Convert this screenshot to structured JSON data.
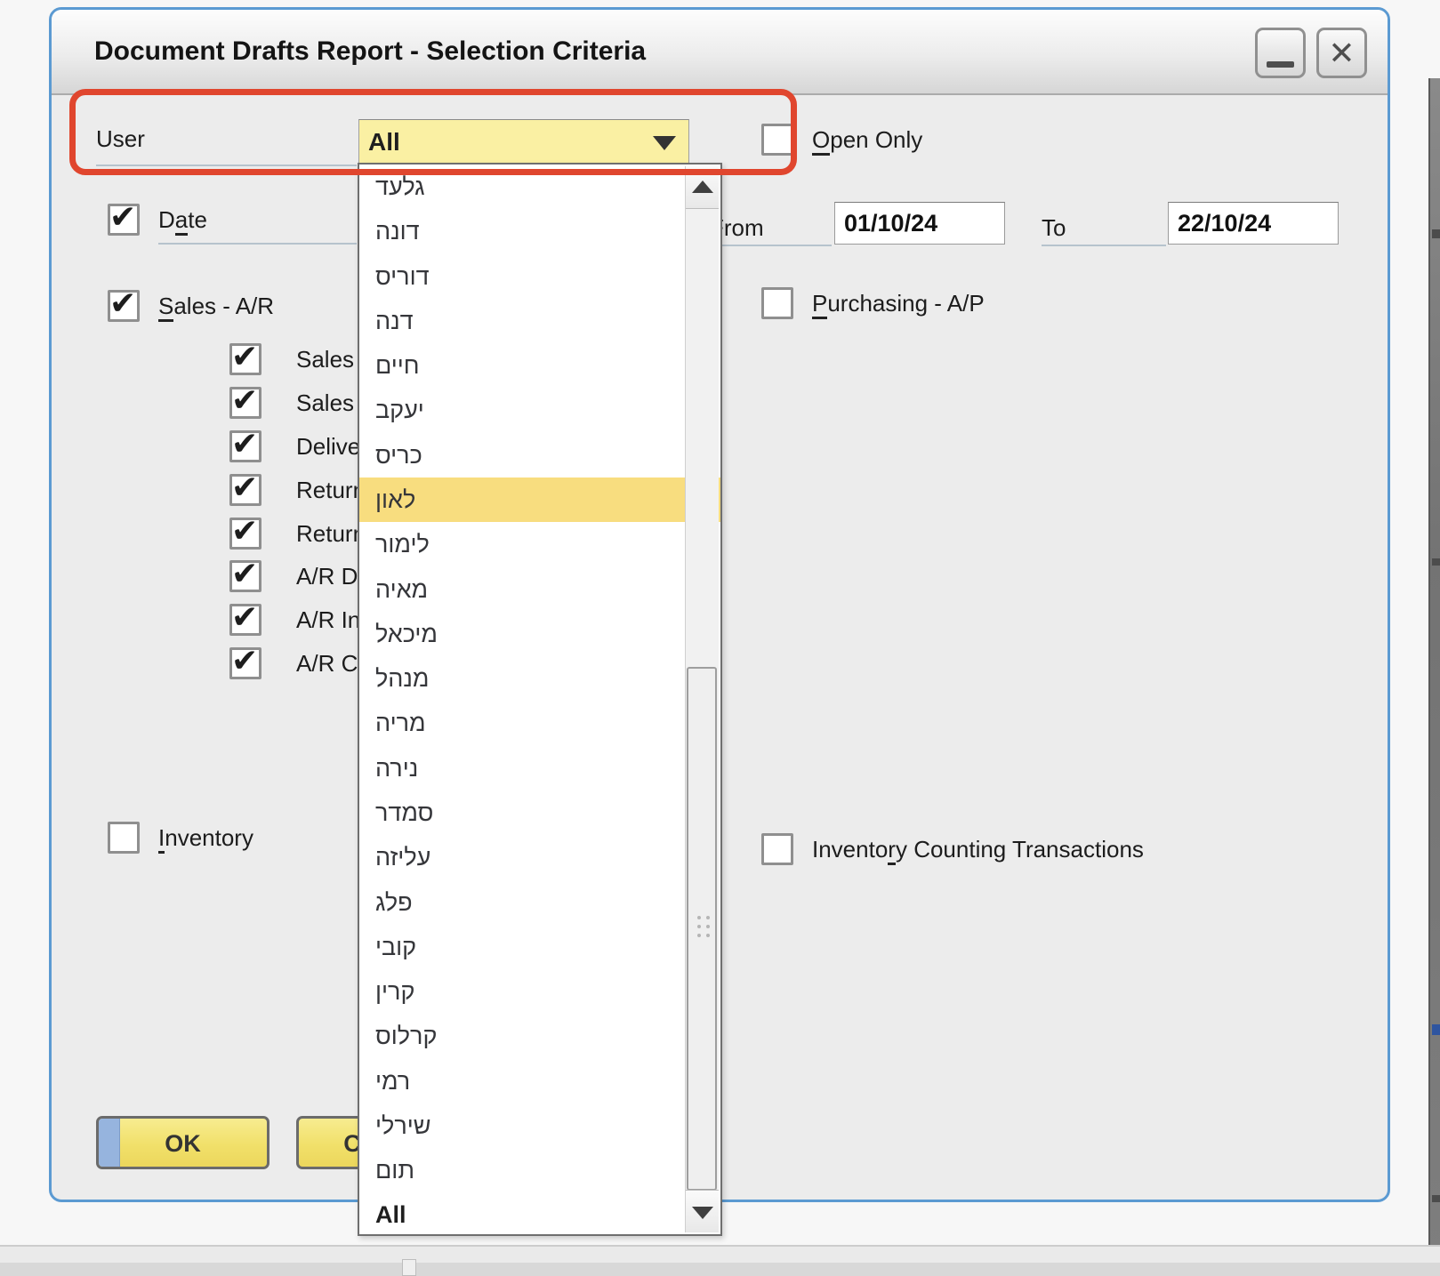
{
  "dialog": {
    "title": "Document Drafts Report - Selection Criteria"
  },
  "user_row": {
    "label": "User",
    "value": "All"
  },
  "dropdown": {
    "items": [
      "גלעד",
      "דונה",
      "דוריס",
      "דנה",
      "חיים",
      "יעקב",
      "כריס",
      "לאון",
      "לימור",
      "מאיה",
      "מיכאל",
      "מנהל",
      "מריה",
      "נירה",
      "סמדר",
      "עליזה",
      "פלג",
      "קובי",
      "קרין",
      "קרלוס",
      "רמי",
      "שירלי",
      "תום",
      "All"
    ],
    "highlighted_index": 7,
    "highlighted_item": "לאון"
  },
  "checkbox_rows": {
    "left": [
      {
        "id": "date",
        "label": "Date",
        "underline": 1,
        "checked": true
      },
      {
        "id": "sales-ar",
        "label": "Sales - A/R",
        "underline": 0,
        "checked": true
      },
      {
        "id": "sales-quotations",
        "label": "Sales Quota",
        "checked": true,
        "sub": true
      },
      {
        "id": "sales-orders",
        "label": "Sales Order",
        "checked": true,
        "sub": true
      },
      {
        "id": "deliveries",
        "label": "Deliveries",
        "checked": true,
        "sub": true
      },
      {
        "id": "return-requests",
        "label": "Return Req",
        "checked": true,
        "sub": true
      },
      {
        "id": "returns",
        "label": "Returns",
        "checked": true,
        "sub": true
      },
      {
        "id": "ar-down-payments",
        "label": "A/R Down",
        "checked": true,
        "sub": true
      },
      {
        "id": "ar-invoices",
        "label": "A/R Invoice",
        "checked": true,
        "sub": true
      },
      {
        "id": "ar-credit-memos",
        "label": "A/R Credit",
        "checked": true,
        "sub": true
      },
      {
        "id": "inventory",
        "label": "Inventory",
        "underline": 0,
        "checked": false
      }
    ],
    "right": [
      {
        "id": "open-only",
        "label": "Open Only",
        "underline": 0,
        "checked": false
      },
      {
        "id": "purchasing-ap",
        "label": "Purchasing - A/P",
        "underline": 0,
        "checked": false
      },
      {
        "id": "inventory-counting-transactions",
        "label": "Inventory Counting Transactions",
        "underline": 7,
        "checked": false
      }
    ]
  },
  "date_range": {
    "from_label": "From",
    "from_value": "01/10/24",
    "to_label": "To",
    "to_value": "22/10/24"
  },
  "buttons": {
    "ok": "OK",
    "cancel": "Cancel"
  },
  "icons": {
    "close_glyph": "✕",
    "check_glyph": "✔"
  },
  "colors": {
    "dialog_border": "#5b9ad2",
    "combo_bg": "#faf0a3",
    "highlight_row": "#f8dd7f",
    "annotation": "#e0462e",
    "button_bg": "#f1e06a",
    "focus_strip": "#96b4de"
  }
}
